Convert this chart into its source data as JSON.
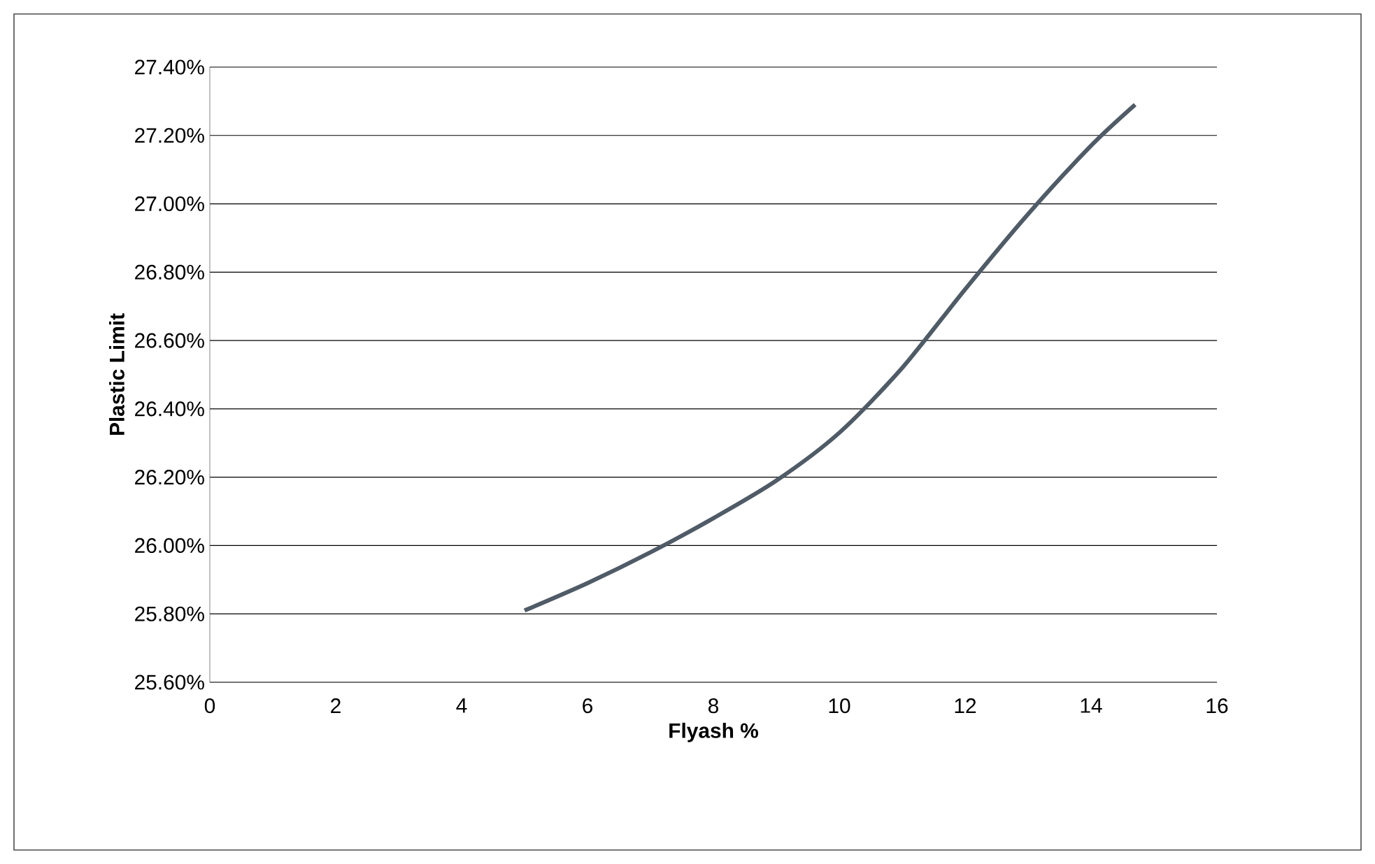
{
  "chart_data": {
    "type": "line",
    "xlabel": "Flyash %",
    "ylabel": "Plastic Limit",
    "series": [
      {
        "color": "#4f5b66",
        "x": [
          5,
          6,
          7,
          8,
          9,
          10,
          11,
          12,
          13,
          14,
          14.7
        ],
        "values": [
          25.81,
          25.89,
          25.98,
          26.08,
          26.19,
          26.33,
          26.52,
          26.75,
          26.97,
          27.17,
          27.29
        ]
      }
    ],
    "xlim": [
      0,
      16
    ],
    "xticks": [
      0,
      2,
      4,
      6,
      8,
      10,
      12,
      14,
      16
    ],
    "ylim": [
      25.6,
      27.4
    ],
    "yticks": [
      {
        "value": 25.6,
        "label": "25.60%"
      },
      {
        "value": 25.8,
        "label": "25.80%"
      },
      {
        "value": 26.0,
        "label": "26.00%"
      },
      {
        "value": 26.2,
        "label": "26.20%"
      },
      {
        "value": 26.4,
        "label": "26.40%"
      },
      {
        "value": 26.6,
        "label": "26.60%"
      },
      {
        "value": 26.8,
        "label": "26.80%"
      },
      {
        "value": 27.0,
        "label": "27.00%"
      },
      {
        "value": 27.2,
        "label": "27.20%"
      },
      {
        "value": 27.4,
        "label": "27.40%"
      }
    ],
    "grid": "y",
    "marker": "none",
    "line_style": "solid"
  }
}
